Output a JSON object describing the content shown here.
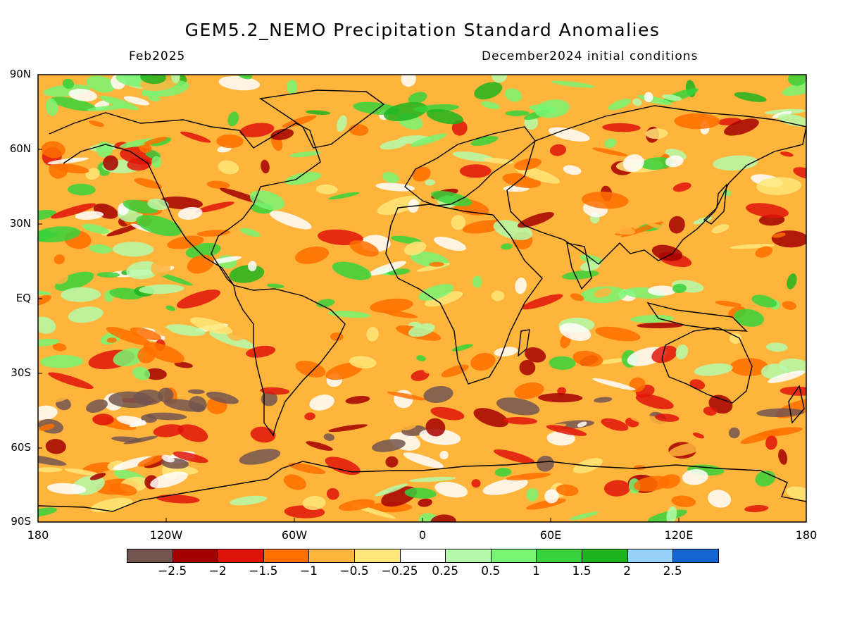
{
  "header": {
    "title": "GEM5.2_NEMO Precipitation Standard Anomalies",
    "month": "Feb2025",
    "init": "December2024 initial conditions"
  },
  "axes": {
    "lat_labels": [
      "90N",
      "60N",
      "30N",
      "EQ",
      "30S",
      "60S",
      "90S"
    ],
    "lon_labels": [
      "180",
      "120W",
      "60W",
      "0",
      "60E",
      "120E",
      "180"
    ]
  },
  "colorbar": {
    "colors": [
      "#735550",
      "#a50000",
      "#e1140a",
      "#ff6e00",
      "#ffb43c",
      "#ffe678",
      "#ffffff",
      "#b4faaa",
      "#78f573",
      "#37d23c",
      "#1eb41e",
      "#96d2fa",
      "#1464d2"
    ],
    "labels": [
      "−2.5",
      "−2",
      "−1.5",
      "−1",
      "−0.5",
      "−0.25",
      "0.25",
      "0.5",
      "1",
      "1.5",
      "2",
      "2.5"
    ]
  }
}
